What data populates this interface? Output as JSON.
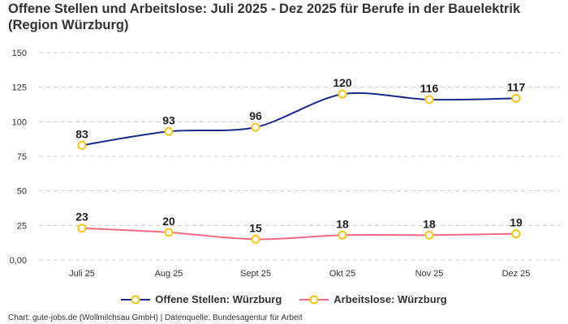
{
  "chart_data": {
    "type": "line",
    "title": "Offene Stellen und Arbeitslose: Juli 2025 - Dez 2025 für Berufe in der Bauelektrik (Region Würzburg)",
    "categories": [
      "Juli 25",
      "Aug 25",
      "Sept 25",
      "Okt 25",
      "Nov 25",
      "Dez 25"
    ],
    "series": [
      {
        "name": "Offene Stellen: Würzburg",
        "values": [
          83,
          93,
          96,
          120,
          116,
          117
        ],
        "color": "#1a2a8c"
      },
      {
        "name": "Arbeitslose: Würzburg",
        "values": [
          23,
          20,
          15,
          18,
          18,
          19
        ],
        "color": "#f06a86"
      }
    ],
    "marker_color": "#f5c518",
    "ylim": [
      0,
      150
    ],
    "yticks": [
      0,
      25,
      50,
      75,
      100,
      125,
      150
    ],
    "ytick_labels": [
      "0,00",
      "25",
      "50",
      "75",
      "100",
      "125",
      "150"
    ],
    "grid": true,
    "legend": "bottom",
    "xlabel": "",
    "ylabel": ""
  },
  "footer": "Chart: gute-jobs.de (Wollmilchsau GmbH) | Datenquelle: Bundesagentur für Arbeit"
}
